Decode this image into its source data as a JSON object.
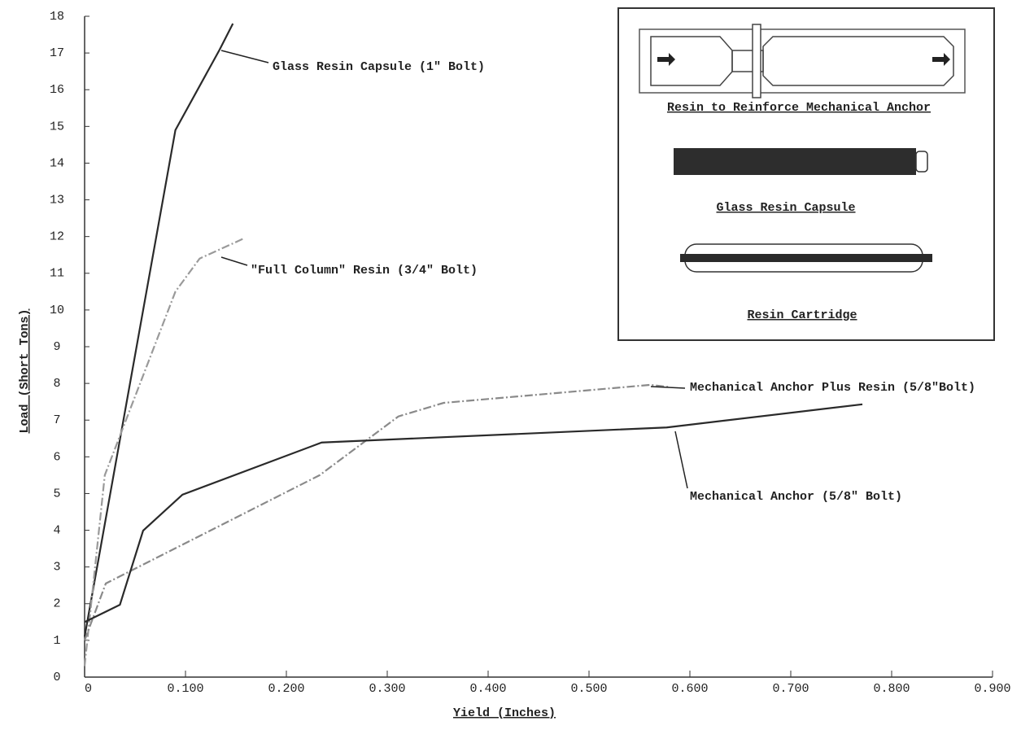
{
  "chart_data": {
    "type": "line",
    "x_label": "Yield (Inches)",
    "y_label": "Load (Short Tons)",
    "xlim": [
      0,
      0.9
    ],
    "ylim": [
      0,
      18
    ],
    "xticks": [
      0,
      {
        "value": 0.1,
        "label": "0.100"
      },
      {
        "value": 0.2,
        "label": "0.200"
      },
      {
        "value": 0.3,
        "label": "0.300"
      },
      {
        "value": 0.4,
        "label": "0.400"
      },
      {
        "value": 0.5,
        "label": "0.500"
      },
      {
        "value": 0.6,
        "label": "0.600"
      },
      {
        "value": 0.7,
        "label": "0.700"
      },
      {
        "value": 0.8,
        "label": "0.800"
      },
      {
        "value": 0.9,
        "label": "0.900"
      }
    ],
    "yticks": [
      0,
      1,
      2,
      3,
      4,
      5,
      6,
      7,
      8,
      9,
      10,
      11,
      12,
      13,
      14,
      15,
      16,
      17,
      18
    ],
    "series": [
      {
        "name": "Glass Resin Capsule (1\" Bolt)",
        "color": "#2a2a2a",
        "style": "solid",
        "x": [
          0,
          0.09,
          0.134,
          0.147
        ],
        "values": [
          1.1,
          14.9,
          17.1,
          17.8
        ]
      },
      {
        "name": "\"Full Column\" Resin (3/4\" Bolt)",
        "color": "#9a9a9a",
        "style": "dashed",
        "x": [
          0,
          0.02,
          0.09,
          0.114,
          0.158
        ],
        "values": [
          0.3,
          5.5,
          10.5,
          11.4,
          11.95
        ]
      },
      {
        "name": "Mechanical Anchor Plus Resin (5/8\"Bolt)",
        "color": "#8a8a8a",
        "style": "dashed",
        "x": [
          0,
          0.021,
          0.233,
          0.311,
          0.356,
          0.561,
          0.58
        ],
        "values": [
          1.0,
          2.55,
          5.5,
          7.1,
          7.47,
          7.96,
          7.9
        ]
      },
      {
        "name": "Mechanical Anchor (5/8\" Bolt)",
        "color": "#2a2a2a",
        "style": "solid",
        "x": [
          0,
          0.035,
          0.058,
          0.097,
          0.235,
          0.577,
          0.771
        ],
        "values": [
          1.5,
          1.97,
          3.99,
          4.97,
          6.39,
          6.8,
          7.43
        ]
      }
    ],
    "inset": {
      "labels": [
        "Resin to Reinforce Mechanical Anchor",
        "Glass Resin Capsule",
        "Resin Cartridge"
      ]
    }
  }
}
